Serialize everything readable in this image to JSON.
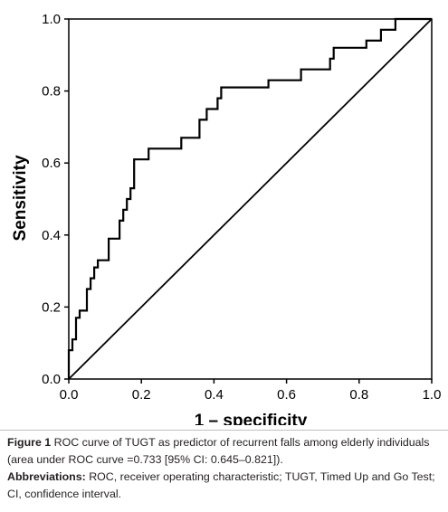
{
  "chart_data": {
    "type": "line",
    "xlabel": "1 – specificity",
    "ylabel": "Sensitivity",
    "xlim": [
      0.0,
      1.0
    ],
    "ylim": [
      0.0,
      1.0
    ],
    "x_ticks": [
      "0.0",
      "0.2",
      "0.4",
      "0.6",
      "0.8",
      "1.0"
    ],
    "y_ticks": [
      "0.0",
      "0.2",
      "0.4",
      "0.6",
      "0.8",
      "1.0"
    ],
    "grid": false,
    "series": [
      {
        "x": [
          0.0,
          0.0,
          0.01,
          0.01,
          0.02,
          0.02,
          0.03,
          0.03,
          0.05,
          0.05,
          0.06,
          0.06,
          0.07,
          0.07,
          0.08,
          0.08,
          0.11,
          0.11,
          0.14,
          0.14,
          0.15,
          0.15,
          0.16,
          0.16,
          0.17,
          0.17,
          0.18,
          0.18,
          0.19,
          0.19,
          0.22,
          0.22,
          0.31,
          0.31,
          0.36,
          0.36,
          0.38,
          0.38,
          0.41,
          0.41,
          0.42,
          0.42,
          0.55,
          0.55,
          0.64,
          0.64,
          0.72,
          0.72,
          0.73,
          0.73,
          0.78,
          0.78,
          0.82,
          0.82,
          0.83,
          0.83,
          0.86,
          0.86,
          0.89,
          0.89,
          0.9,
          0.9,
          1.0
        ],
        "y": [
          0.0,
          0.08,
          0.08,
          0.11,
          0.11,
          0.17,
          0.17,
          0.19,
          0.19,
          0.25,
          0.25,
          0.28,
          0.28,
          0.31,
          0.31,
          0.33,
          0.33,
          0.39,
          0.39,
          0.44,
          0.44,
          0.47,
          0.47,
          0.5,
          0.5,
          0.53,
          0.53,
          0.61,
          0.61,
          0.61,
          0.61,
          0.64,
          0.64,
          0.67,
          0.67,
          0.72,
          0.72,
          0.75,
          0.75,
          0.78,
          0.78,
          0.81,
          0.81,
          0.83,
          0.83,
          0.86,
          0.86,
          0.89,
          0.89,
          0.92,
          0.92,
          0.92,
          0.92,
          0.94,
          0.94,
          0.94,
          0.94,
          0.97,
          0.97,
          0.97,
          0.97,
          1.0,
          1.0
        ]
      },
      {
        "x": [
          0.0,
          1.0
        ],
        "y": [
          0.0,
          1.0
        ]
      }
    ]
  },
  "caption": {
    "figure_label": "Figure 1",
    "figure_text": "ROC curve of TUGT as predictor of recurrent falls among elderly individuals (area under ROC curve =0.733 [95% CI: 0.645–0.821]).",
    "abbreviations_label": "Abbreviations:",
    "abbreviations_text": "ROC, receiver operating characteristic; TUGT, Timed Up and Go Test; CI, confidence interval."
  }
}
